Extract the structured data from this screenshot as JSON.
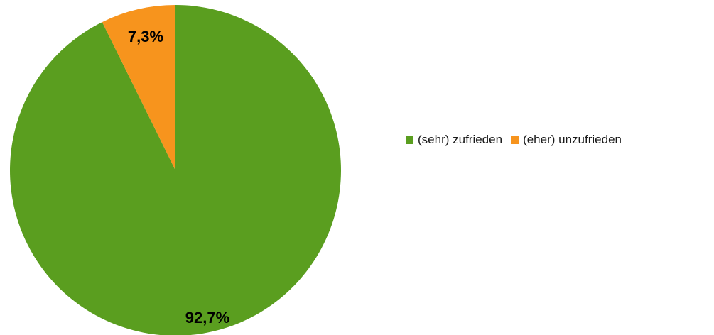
{
  "chart_data": {
    "type": "pie",
    "start_angle_deg": 0,
    "direction": "clockwise",
    "legend_position": "right",
    "slices": [
      {
        "name": "(sehr) zufrieden",
        "value": 92.7,
        "label": "92,7%",
        "color": "#5a9e1f"
      },
      {
        "name": "(eher) unzufrieden",
        "value": 7.3,
        "label": "7,3%",
        "color": "#f7941d"
      }
    ]
  }
}
